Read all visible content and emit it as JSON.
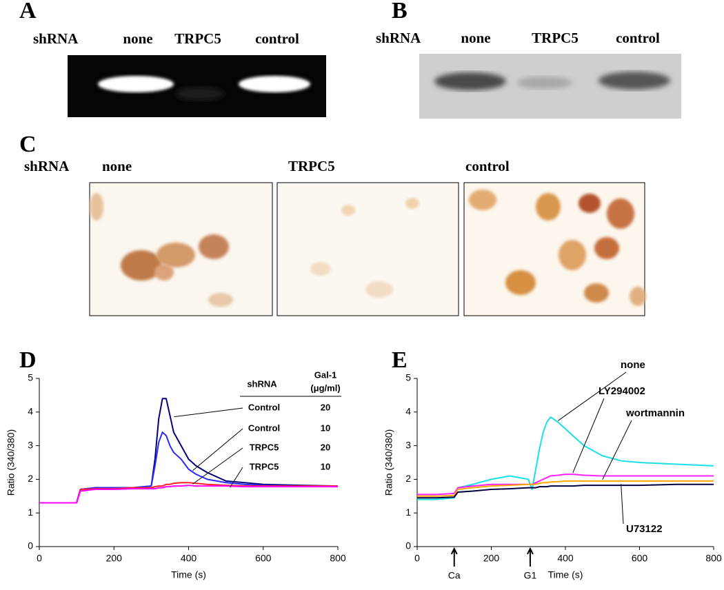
{
  "panels": {
    "a": {
      "letter": "A",
      "row_label": "shRNA",
      "lanes": [
        "none",
        "TRPC5",
        "control"
      ]
    },
    "b": {
      "letter": "B",
      "row_label": "shRNA",
      "lanes": [
        "none",
        "TRPC5",
        "control"
      ]
    },
    "c": {
      "letter": "C",
      "row_label": "shRNA",
      "lanes": [
        "none",
        "TRPC5",
        "control"
      ]
    }
  },
  "chart_data": [
    {
      "type": "line",
      "letter": "D",
      "xlabel": "Time (s)",
      "ylabel": "Ratio (340/380)",
      "xlim": [
        0,
        800
      ],
      "xticks": [
        0,
        200,
        400,
        600,
        800
      ],
      "ylim": [
        0,
        5
      ],
      "yticks": [
        0,
        1,
        2,
        3,
        4,
        5
      ],
      "legend_header": [
        "shRNA",
        "Gal-1",
        "(μg/ml)"
      ],
      "x": [
        0,
        50,
        100,
        110,
        150,
        200,
        250,
        300,
        310,
        320,
        330,
        340,
        350,
        360,
        380,
        400,
        420,
        450,
        500,
        550,
        600,
        700,
        800
      ],
      "series": [
        {
          "name": "Control",
          "dose": "20",
          "color": "#00007a",
          "values": [
            1.3,
            1.3,
            1.3,
            1.7,
            1.75,
            1.75,
            1.75,
            1.8,
            2.6,
            3.8,
            4.4,
            4.4,
            3.9,
            3.4,
            3.0,
            2.6,
            2.4,
            2.2,
            1.95,
            1.9,
            1.85,
            1.82,
            1.8
          ]
        },
        {
          "name": "Control",
          "dose": "10",
          "color": "#2a2aff",
          "values": [
            1.3,
            1.3,
            1.3,
            1.7,
            1.75,
            1.75,
            1.75,
            1.8,
            2.4,
            3.1,
            3.4,
            3.3,
            3.0,
            2.8,
            2.6,
            2.3,
            2.15,
            2.0,
            1.9,
            1.85,
            1.82,
            1.8,
            1.8
          ]
        },
        {
          "name": "TRPC5",
          "dose": "20",
          "color": "#ff2020",
          "values": [
            1.3,
            1.3,
            1.3,
            1.7,
            1.72,
            1.72,
            1.75,
            1.75,
            1.78,
            1.8,
            1.8,
            1.85,
            1.85,
            1.88,
            1.9,
            1.9,
            1.88,
            1.85,
            1.82,
            1.8,
            1.8,
            1.8,
            1.8
          ]
        },
        {
          "name": "TRPC5",
          "dose": "10",
          "color": "#ff00ff",
          "values": [
            1.3,
            1.3,
            1.3,
            1.65,
            1.7,
            1.7,
            1.72,
            1.72,
            1.72,
            1.75,
            1.75,
            1.78,
            1.78,
            1.8,
            1.8,
            1.82,
            1.8,
            1.8,
            1.8,
            1.78,
            1.78,
            1.78,
            1.78
          ]
        }
      ]
    },
    {
      "type": "line",
      "letter": "E",
      "xlabel": "Time (s)",
      "ylabel": "Ratio (340/380)",
      "xlim": [
        0,
        800
      ],
      "xticks": [
        0,
        200,
        400,
        600,
        800
      ],
      "ylim": [
        0,
        5
      ],
      "yticks": [
        0,
        1,
        2,
        3,
        4,
        5
      ],
      "annotations": [
        {
          "text": "Ca",
          "x": 100
        },
        {
          "text": "G1",
          "x": 305
        }
      ],
      "x": [
        0,
        50,
        100,
        110,
        150,
        200,
        250,
        300,
        310,
        320,
        330,
        340,
        350,
        360,
        380,
        400,
        420,
        450,
        500,
        550,
        600,
        700,
        800
      ],
      "series": [
        {
          "name": "none",
          "color": "#18e0e8",
          "values": [
            1.4,
            1.4,
            1.45,
            1.75,
            1.85,
            2.0,
            2.1,
            2.0,
            1.7,
            2.3,
            2.9,
            3.4,
            3.7,
            3.85,
            3.7,
            3.5,
            3.3,
            3.0,
            2.7,
            2.55,
            2.5,
            2.45,
            2.4
          ]
        },
        {
          "name": "LY294002",
          "color": "#ff20ff",
          "values": [
            1.55,
            1.55,
            1.58,
            1.75,
            1.8,
            1.85,
            1.85,
            1.85,
            1.85,
            1.9,
            1.95,
            2.0,
            2.05,
            2.1,
            2.12,
            2.15,
            2.15,
            2.12,
            2.1,
            2.1,
            2.1,
            2.1,
            2.1
          ]
        },
        {
          "name": "wortmannin",
          "color": "#ffa500",
          "values": [
            1.5,
            1.5,
            1.52,
            1.7,
            1.75,
            1.8,
            1.82,
            1.85,
            1.85,
            1.85,
            1.88,
            1.9,
            1.9,
            1.92,
            1.93,
            1.95,
            1.95,
            1.95,
            1.95,
            1.95,
            1.95,
            1.95,
            1.95
          ]
        },
        {
          "name": "U73122",
          "color": "#000040",
          "values": [
            1.45,
            1.45,
            1.47,
            1.62,
            1.65,
            1.7,
            1.72,
            1.75,
            1.75,
            1.75,
            1.78,
            1.78,
            1.78,
            1.8,
            1.8,
            1.8,
            1.8,
            1.82,
            1.82,
            1.82,
            1.82,
            1.85,
            1.85
          ]
        }
      ]
    }
  ]
}
